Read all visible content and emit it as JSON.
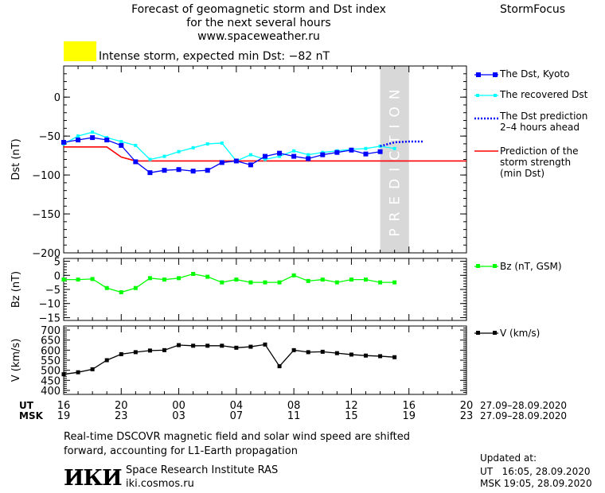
{
  "header": {
    "title_line1": "Forecast of geomagnetic storm and Dst index",
    "title_line2": "for the next several hours",
    "website": "www.spaceweather.ru",
    "brand": "StormFocus",
    "storm_label": "Intense storm, expected min Dst: −82 nT",
    "storm_color": "#ffff00"
  },
  "legend": {
    "dst_kyoto": "The Dst, Kyoto",
    "dst_recovered": "The recovered Dst",
    "dst_prediction_l1": "The Dst prediction",
    "dst_prediction_l2": "2–4 hours ahead",
    "strength_l1": "Prediction of the",
    "strength_l2": "storm strength",
    "strength_l3": "(min Dst)",
    "bz": "Bz (nT, GSM)",
    "v": "V (km/s)"
  },
  "prediction_label": "PREDICTION",
  "time_axis": {
    "ut_label": "UT",
    "msk_label": "MSK",
    "ut_ticks": [
      "16",
      "20",
      "00",
      "04",
      "08",
      "12",
      "16",
      "20"
    ],
    "msk_ticks": [
      "19",
      "23",
      "03",
      "07",
      "11",
      "15",
      "19",
      "23"
    ],
    "ut_date_range": "27.09–28.09.2020",
    "msk_date_range": "27.09–28.09.2020"
  },
  "footer": {
    "note_line1": "Real-time DSCOVR magnetic field and solar wind speed are shifted",
    "note_line2": "forward, accounting for L1-Earth propagation",
    "logo_text": "ИКИ",
    "institute": "Space Research Institute RAS",
    "institute_url": "iki.cosmos.ru",
    "updated_label": "Updated at:",
    "updated_ut": "UT   16:05, 28.09.2020",
    "updated_msk": "MSK 19:05, 28.09.2020"
  },
  "colors": {
    "dst_kyoto": "#0000ff",
    "dst_recovered": "#00ffff",
    "dst_prediction": "#0000ff",
    "strength": "#ff0000",
    "bz": "#00ff00",
    "v": "#000000",
    "prediction_band": "#d8d8d8"
  },
  "chart_data": [
    {
      "type": "line",
      "ylabel": "Dst (nT)",
      "xlim": [
        16,
        44
      ],
      "ylim": [
        -200,
        40
      ],
      "yticks": [
        0,
        -50,
        -100,
        -150,
        -200
      ],
      "prediction_region": [
        38,
        40
      ],
      "series": [
        {
          "name": "The Dst, Kyoto",
          "x": [
            16,
            17,
            18,
            19,
            20,
            21,
            22,
            23,
            24,
            25,
            26,
            27,
            28,
            29,
            30,
            31,
            32,
            33,
            34,
            35,
            36,
            37,
            38
          ],
          "y": [
            -58,
            -55,
            -52,
            -55,
            -62,
            -83,
            -97,
            -94,
            -93,
            -95,
            -94,
            -84,
            -82,
            -87,
            -76,
            -72,
            -76,
            -79,
            -74,
            -71,
            -68,
            -73,
            -70
          ]
        },
        {
          "name": "The recovered Dst",
          "x": [
            16,
            17,
            18,
            19,
            20,
            21,
            22,
            23,
            24,
            25,
            26,
            27,
            28,
            29,
            30,
            31,
            32,
            33,
            34,
            35,
            36,
            37,
            38,
            39
          ],
          "y": [
            -60,
            -50,
            -45,
            -52,
            -57,
            -62,
            -80,
            -76,
            -70,
            -65,
            -60,
            -59,
            -82,
            -74,
            -80,
            -76,
            -69,
            -74,
            -71,
            -69,
            -67,
            -66,
            -63,
            -66
          ]
        },
        {
          "name": "The Dst prediction 2–4 hours ahead",
          "x": [
            38,
            39,
            40,
            41
          ],
          "y": [
            -63,
            -58,
            -57,
            -57
          ]
        },
        {
          "name": "Prediction of the storm strength (min Dst)",
          "x": [
            16,
            19,
            20,
            21,
            44
          ],
          "y": [
            -64,
            -64,
            -77,
            -82,
            -82
          ]
        }
      ]
    },
    {
      "type": "line",
      "ylabel": "Bz (nT)",
      "xlim": [
        16,
        44
      ],
      "ylim": [
        -16,
        6
      ],
      "yticks": [
        5,
        0,
        -5,
        -10,
        -15
      ],
      "series": [
        {
          "name": "Bz (nT, GSM)",
          "x": [
            16,
            17,
            18,
            19,
            20,
            21,
            22,
            23,
            24,
            25,
            26,
            27,
            28,
            29,
            30,
            31,
            32,
            33,
            34,
            35,
            36,
            37,
            38,
            39
          ],
          "y": [
            -1.5,
            -1.5,
            -1.3,
            -4.5,
            -6,
            -4.5,
            -1,
            -1.5,
            -1,
            0.5,
            -0.5,
            -2.5,
            -1.5,
            -2.5,
            -2.5,
            -2.5,
            0,
            -2,
            -1.5,
            -2.5,
            -1.5,
            -1.5,
            -2.5,
            -2.5
          ]
        }
      ]
    },
    {
      "type": "line",
      "ylabel": "V (km/s)",
      "xlim": [
        16,
        44
      ],
      "ylim": [
        380,
        720
      ],
      "yticks": [
        700,
        650,
        600,
        550,
        500,
        450,
        400
      ],
      "series": [
        {
          "name": "V (km/s)",
          "x": [
            16,
            17,
            18,
            19,
            20,
            21,
            22,
            23,
            24,
            25,
            26,
            27,
            28,
            29,
            30,
            31,
            32,
            33,
            34,
            35,
            36,
            37,
            38,
            39
          ],
          "y": [
            480,
            490,
            505,
            550,
            580,
            590,
            598,
            600,
            625,
            622,
            622,
            622,
            612,
            617,
            628,
            520,
            600,
            590,
            592,
            585,
            578,
            573,
            570,
            565
          ]
        }
      ]
    }
  ]
}
